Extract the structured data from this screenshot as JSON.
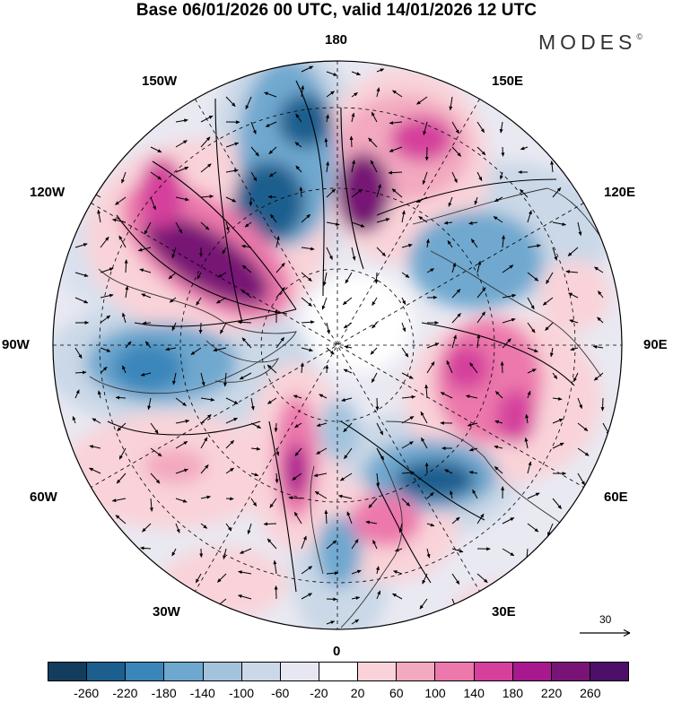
{
  "title": "Base 06/01/2026 00 UTC, valid 14/01/2026 12 UTC",
  "brand": "MODES",
  "brand_mark": "©",
  "longitude_labels": {
    "top": "180",
    "top_left": "150W",
    "top_right": "150E",
    "upper_left": "120W",
    "upper_right": "120E",
    "left": "90W",
    "right": "90E",
    "lower_left": "60W",
    "lower_right": "60E",
    "bottom_left": "30W",
    "bottom_right": "30E",
    "bottom": "0"
  },
  "vector_reference": "30",
  "colorbar": {
    "colors": [
      "#123d5e",
      "#1c5f8e",
      "#3a86ba",
      "#6fa8cf",
      "#a3c3dd",
      "#cad8e7",
      "#e6e7f2",
      "#ffffff",
      "#f9d3d9",
      "#f3a9bf",
      "#ec78ac",
      "#d4409c",
      "#a8188e",
      "#771475",
      "#4d0f67"
    ],
    "tick_labels": [
      "-260",
      "-220",
      "-180",
      "-140",
      "-100",
      "-60",
      "-20",
      "20",
      "60",
      "100",
      "140",
      "180",
      "220",
      "260"
    ]
  }
}
